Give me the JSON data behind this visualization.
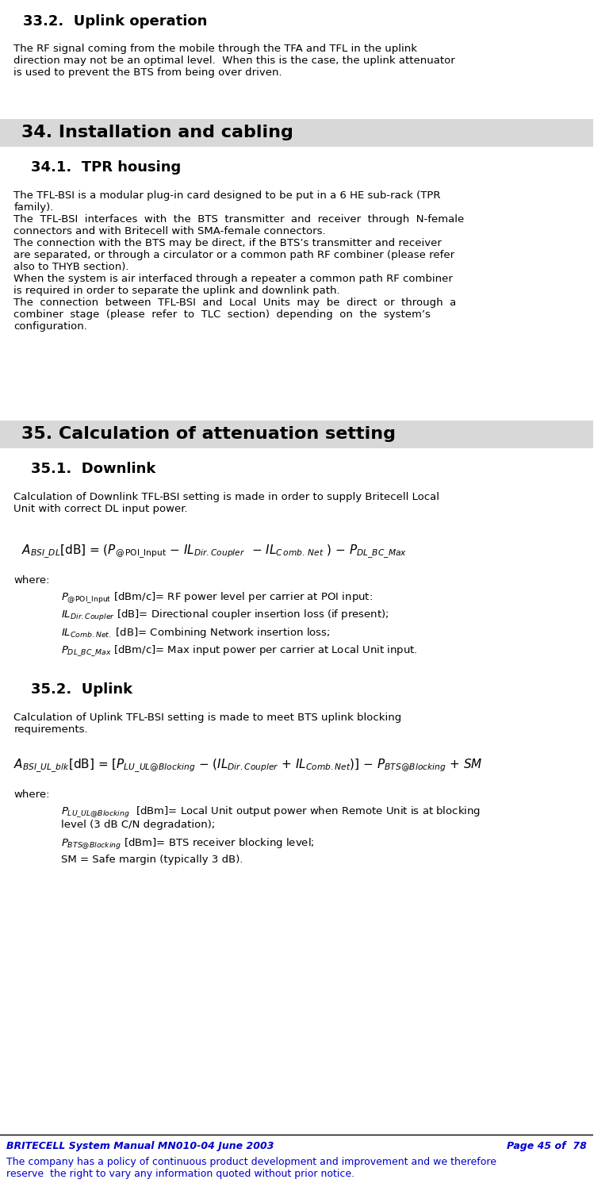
{
  "bg_color": "#ffffff",
  "text_color": "#000000",
  "blue_color": "#0000cc",
  "gray_bg": "#d8d8d8",
  "section33_2_title": "33.2.  Uplink operation",
  "section33_2_body": "The RF signal coming from the mobile through the TFA and TFL in the uplink\ndirection may not be an optimal level.  When this is the case, the uplink attenuator\nis used to prevent the BTS from being over driven.",
  "section34_title": "34. Installation and cabling",
  "section34_1_title": "34.1.  TPR housing",
  "section34_1_body": "The TFL-BSI is a modular plug-in card designed to be put in a 6 HE sub-rack (TPR\nfamily).\nThe  TFL-BSI  interfaces  with  the  BTS  transmitter  and  receiver  through  N-female\nconnectors and with Britecell with SMA-female connectors.\nThe connection with the BTS may be direct, if the BTS’s transmitter and receiver\nare separated, or through a circulator or a common path RF combiner (please refer\nalso to THYB section).\nWhen the system is air interfaced through a repeater a common path RF combiner\nis required in order to separate the uplink and downlink path.\nThe  connection  between  TFL-BSI  and  Local  Units  may  be  direct  or  through  a\ncombiner  stage  (please  refer  to  TLC  section)  depending  on  the  system’s\nconfiguration.",
  "section35_title": "35. Calculation of attenuation setting",
  "section35_1_title": "35.1.  Downlink",
  "section35_1_body": "Calculation of Downlink TFL-BSI setting is made in order to supply Britecell Local\nUnit with correct DL input power.",
  "section35_1_where": "where:",
  "section35_1_items": [
    "P₀POI_Input [dBm/c]= RF power level per carrier at POI input:",
    "ILᴅir.Coupler [dB]= Directional coupler insertion loss (if present);",
    "ILᴄomb.Net. [dB]= Combining Network insertion loss;",
    "PᴅL_BC_Max [dBm/c]= Max input power per carrier at Local Unit input."
  ],
  "section35_2_title": "35.2.  Uplink",
  "section35_2_body": "Calculation of Uplink TFL-BSI setting is made to meet BTS uplink blocking\nrequirements.",
  "section35_2_where": "where:",
  "section35_2_items": [
    "PᴸU_UL@Blocking  [dBm]= Local Unit output power when Remote Unit is at blocking\nlevel (3 dB C/N degradation);",
    "PᴬTS@Blocking [dBm]= BTS receiver blocking level;",
    "SM = Safe margin (typically 3 dB)."
  ],
  "footer_left": "BRITECELL System Manual MN010-04 June 2003",
  "footer_right": "Page 45 of  78",
  "footer_body": "The company has a policy of continuous product development and improvement and we therefore\nreserve  the right to vary any information quoted without prior notice."
}
